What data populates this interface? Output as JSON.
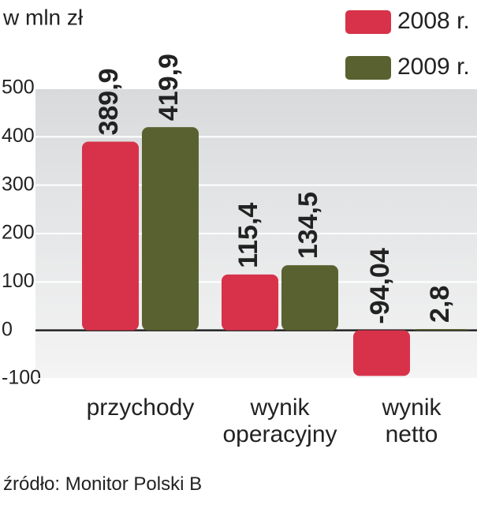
{
  "chart_data": {
    "type": "bar",
    "title": "w mln zł",
    "source": "źródło: Monitor Polski B",
    "categories": [
      "przychody",
      "wynik operacyjny",
      "wynik netto"
    ],
    "series": [
      {
        "name": "2008 r.",
        "color": "#d8324a",
        "values": [
          389.9,
          115.4,
          -94.04
        ],
        "value_labels": [
          "389,9",
          "115,4",
          "-94,04"
        ]
      },
      {
        "name": "2009 r.",
        "color": "#5a6130",
        "values": [
          419.9,
          134.5,
          2.8
        ],
        "value_labels": [
          "419,9",
          "134,5",
          "2,8"
        ]
      }
    ],
    "ylim": [
      -100,
      500
    ],
    "yticks": [
      -100,
      0,
      100,
      200,
      300,
      400,
      500
    ],
    "grid": true
  }
}
